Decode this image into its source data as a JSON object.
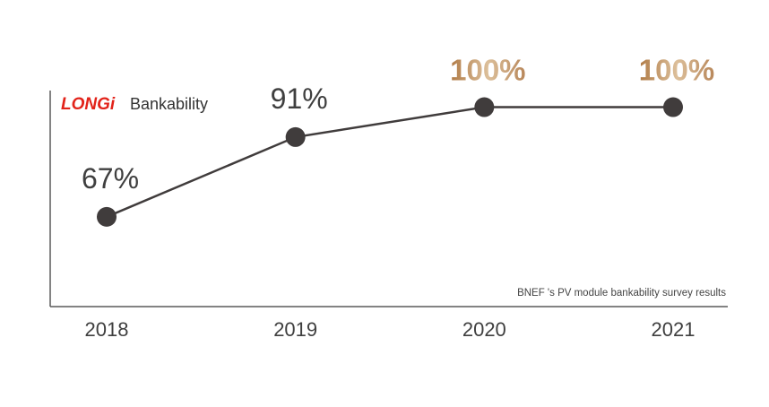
{
  "brand": {
    "logo_text": "LONGi",
    "logo_color": "#e2231a"
  },
  "chart_data": {
    "type": "line",
    "title": "Bankability",
    "categories": [
      "2018",
      "2019",
      "2020",
      "2021"
    ],
    "values": [
      67,
      91,
      100,
      100
    ],
    "data_labels": [
      "67%",
      "91%",
      "100%",
      "100%"
    ],
    "highlight_color": "#c59a6a",
    "line_color": "#403c3c",
    "label_color": "#3f3f3f",
    "note": "BNEF 's PV module bankability survey results",
    "ylim": [
      40,
      105
    ],
    "grid": false
  }
}
